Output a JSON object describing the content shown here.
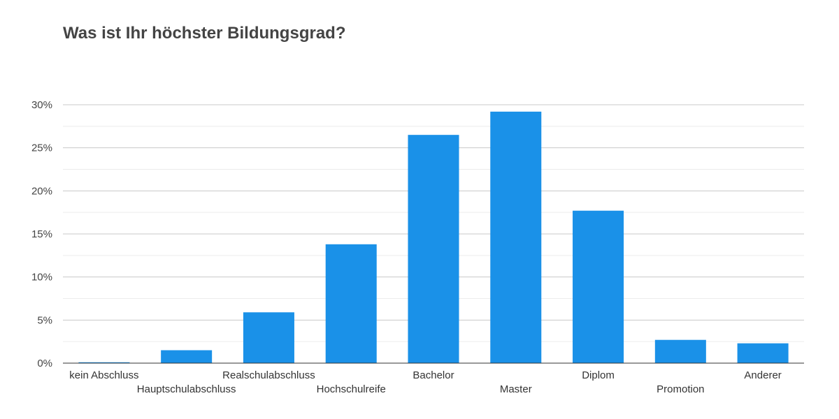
{
  "colors": {
    "bar": "#1a91e8",
    "grid_major": "#c8c8c8",
    "grid_minor": "#ececec",
    "axis": "#333333",
    "tick_text": "#444444",
    "title": "#444444"
  },
  "chart_data": {
    "type": "bar",
    "title": "Was ist Ihr höchster Bildungsgrad?",
    "xlabel": "",
    "ylabel": "",
    "ylim": [
      0,
      30
    ],
    "y_ticks": [
      0,
      5,
      10,
      15,
      20,
      25,
      30
    ],
    "y_tick_format": "{v}%",
    "grid": true,
    "legend": "none",
    "categories": [
      "kein Abschluss",
      "Hauptschulabschluss",
      "Realschulabschluss",
      "Hochschulreife",
      "Bachelor",
      "Master",
      "Diplom",
      "Promotion",
      "Anderer"
    ],
    "values": [
      0.1,
      1.5,
      5.9,
      13.8,
      26.5,
      29.2,
      17.7,
      2.7,
      2.3
    ]
  }
}
